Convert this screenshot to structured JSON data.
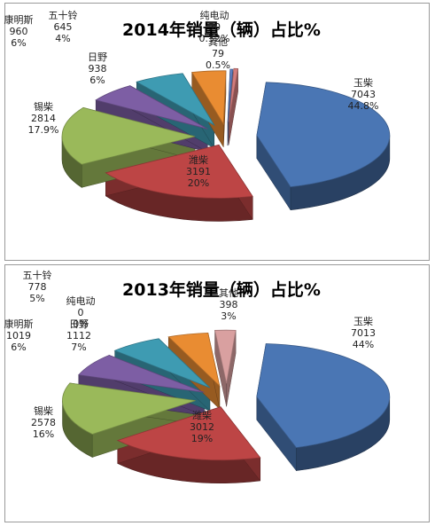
{
  "chart_data": [
    {
      "type": "pie",
      "title": "2014年销量（辆）占比%",
      "slices": [
        {
          "name": "玉柴",
          "value": 7043,
          "percent": "44.8%",
          "color": "#4a76b4"
        },
        {
          "name": "潍柴",
          "value": 3191,
          "percent": "20%",
          "color": "#bd4545"
        },
        {
          "name": "锡柴",
          "value": 2814,
          "percent": "17.9%",
          "color": "#9ab95a"
        },
        {
          "name": "日野",
          "value": 938,
          "percent": "6%",
          "color": "#7d5ea4"
        },
        {
          "name": "康明斯",
          "value": 960,
          "percent": "6%",
          "color": "#3e9bb2"
        },
        {
          "name": "五十铃",
          "value": 645,
          "percent": "4%",
          "color": "#e98c32"
        },
        {
          "name": "纯电动",
          "value": 50,
          "percent": "0.32%",
          "color": "#5d7ec0"
        },
        {
          "name": "其他",
          "value": 79,
          "percent": "0.5%",
          "color": "#d27c7c"
        }
      ]
    },
    {
      "type": "pie",
      "title": "2013年销量（辆）占比%",
      "slices": [
        {
          "name": "玉柴",
          "value": 7013,
          "percent": "44%",
          "color": "#4a76b4"
        },
        {
          "name": "潍柴",
          "value": 3012,
          "percent": "19%",
          "color": "#bd4545"
        },
        {
          "name": "锡柴",
          "value": 2578,
          "percent": "16%",
          "color": "#9ab95a"
        },
        {
          "name": "日野",
          "value": 1112,
          "percent": "7%",
          "color": "#7d5ea4"
        },
        {
          "name": "康明斯",
          "value": 1019,
          "percent": "6%",
          "color": "#3e9bb2"
        },
        {
          "name": "五十铃",
          "value": 778,
          "percent": "5%",
          "color": "#e98c32"
        },
        {
          "name": "纯电动",
          "value": 0,
          "percent": "0%",
          "color": "#5d7ec0"
        },
        {
          "name": "其他",
          "value": 398,
          "percent": "3%",
          "color": "#d9a0a0"
        }
      ]
    }
  ]
}
